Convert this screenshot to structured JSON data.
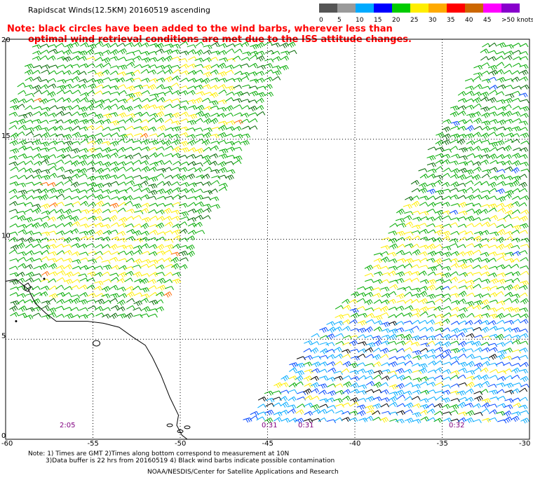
{
  "header": {
    "title": "Rapidscat Winds(12.5KM) 20160519 ascending",
    "note_line1": "Note: black circles have been added to the wind barbs, wherever less than",
    "note_line2": "optimal wind retrieval conditions are met due to the ISS attitude changes."
  },
  "legend": {
    "labels": [
      "0",
      "5",
      "10",
      "15",
      "20",
      "25",
      "30",
      "35",
      "40",
      "45",
      ">50 knots"
    ],
    "colors": [
      "#555555",
      "#9a9a9a",
      "#00aaff",
      "#0000ff",
      "#00cc00",
      "#ffee00",
      "#ffaa00",
      "#ff0000",
      "#cc6600",
      "#ff00ff",
      "#8800cc"
    ]
  },
  "map": {
    "lat_labels": [
      "20",
      "15",
      "10",
      "5",
      "0"
    ],
    "lon_labels": [
      "-60",
      "-55",
      "-50",
      "-45",
      "-40",
      "-35",
      "-30"
    ],
    "time_labels": [
      "2:05",
      "0:31",
      "0:31",
      "0:32"
    ],
    "colors": {
      "grid": "#000000",
      "coast": "#000000",
      "barb_green": "#00aa00",
      "barb_dark_green": "#006600",
      "barb_yellow": "#ffee00",
      "barb_blue": "#0044ff",
      "barb_cyan": "#00aaff",
      "barb_black": "#000000",
      "barb_orange": "#ff6600"
    }
  },
  "footer": {
    "line1": "Note: 1) Times are GMT 2)Times along bottom correspond to measurement at 10N",
    "line2": "3)Data buffer is 22 hrs from 20160519 4) Black wind barbs indicate possible contamination",
    "line3": "NOAA/NESDIS/Center for Satellite Applications and Research"
  }
}
